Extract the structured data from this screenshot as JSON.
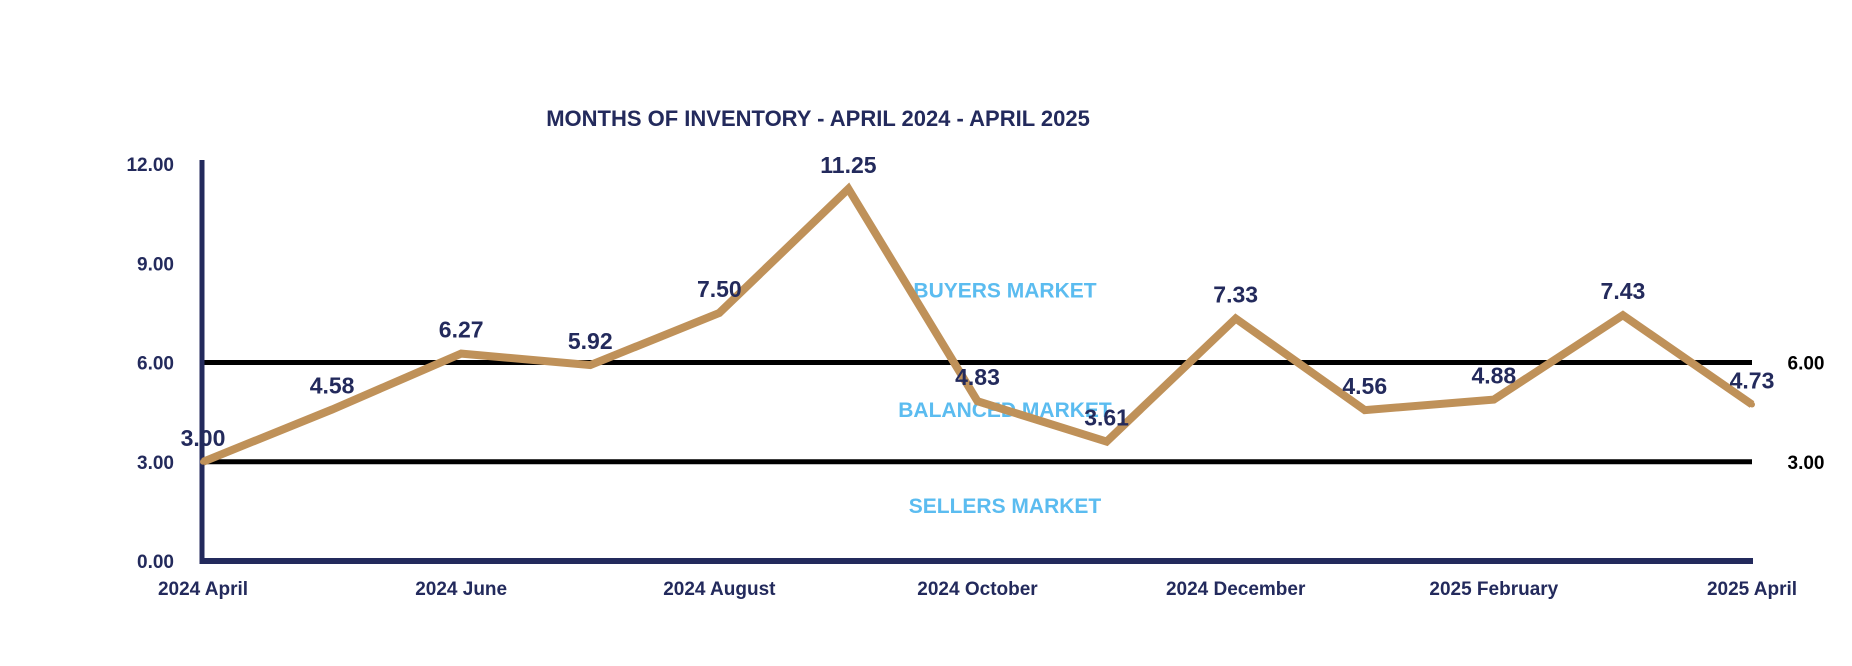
{
  "chart_data": {
    "type": "line",
    "title": "MONTHS OF INVENTORY - APRIL 2024 - APRIL 2025",
    "xlabel": "",
    "ylabel": "",
    "ylim": [
      0,
      12
    ],
    "y_ticks": [
      "0.00",
      "3.00",
      "6.00",
      "9.00",
      "12.00"
    ],
    "y_tick_values": [
      0,
      3,
      6,
      9,
      12
    ],
    "x_tick_labels": [
      "2024 April",
      "2024 June",
      "2024 August",
      "2024 October",
      "2024 December",
      "2025 February",
      "2025 April"
    ],
    "x_tick_indices": [
      0,
      2,
      4,
      6,
      8,
      10,
      12
    ],
    "x": [
      "2024 April",
      "2024 May",
      "2024 June",
      "2024 July",
      "2024 August",
      "2024 September",
      "2024 October",
      "2024 November",
      "2024 December",
      "2025 January",
      "2025 February",
      "2025 March",
      "2025 April"
    ],
    "series": [
      {
        "values": [
          3.0,
          4.58,
          6.27,
          5.92,
          7.5,
          11.25,
          4.83,
          3.61,
          7.33,
          4.56,
          4.88,
          7.43,
          4.73
        ],
        "labels": [
          "3.00",
          "4.58",
          "6.27",
          "5.92",
          "7.50",
          "11.25",
          "4.83",
          "3.61",
          "7.33",
          "4.56",
          "4.88",
          "7.43",
          "4.73"
        ]
      }
    ],
    "reference_lines": [
      {
        "value": 6,
        "label": "6.00"
      },
      {
        "value": 3,
        "label": "3.00"
      }
    ],
    "zones": [
      {
        "label": "BUYERS MARKET",
        "y_center": 8.2
      },
      {
        "label": "BALANCED MARKET",
        "y_center": 4.6
      },
      {
        "label": "SELLERS MARKET",
        "y_center": 1.7
      }
    ],
    "grid": false,
    "legend": "none",
    "colors": {
      "line": "#bf9159",
      "axis": "#232a5c",
      "text": "#232a5c",
      "reference": "#000000",
      "zone": "#5bbcf0"
    }
  }
}
